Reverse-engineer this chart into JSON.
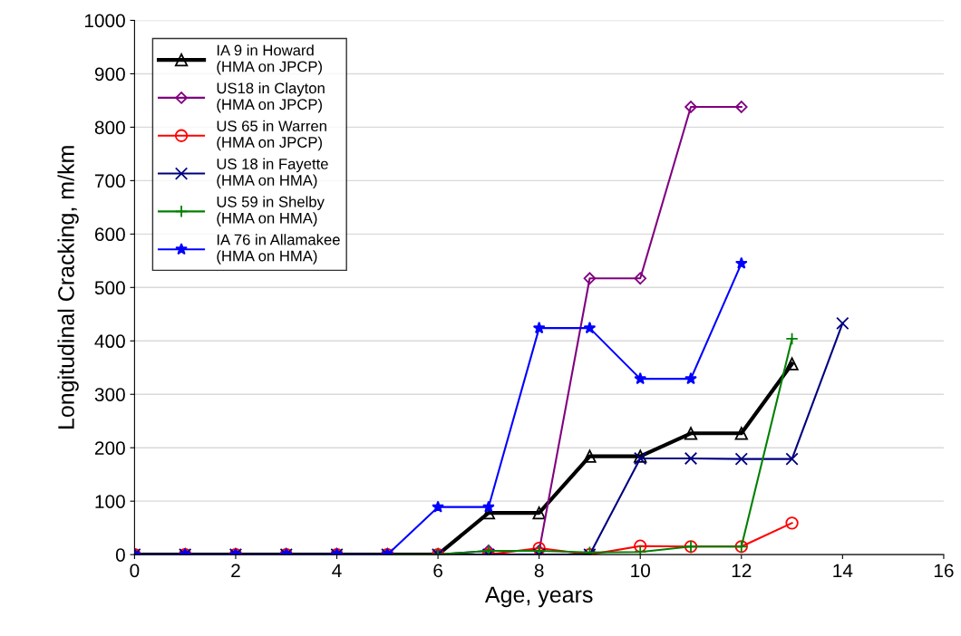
{
  "chart_data": {
    "type": "line",
    "xlabel": "Age, years",
    "ylabel": "Longitudinal Cracking, m/km",
    "xlim": [
      0,
      16
    ],
    "xticks": [
      0,
      2,
      4,
      6,
      8,
      10,
      12,
      14,
      16
    ],
    "ylim": [
      0,
      1000
    ],
    "yticks": [
      0,
      100,
      200,
      300,
      400,
      500,
      600,
      700,
      800,
      900,
      1000
    ],
    "grid": "y",
    "legend": "top left",
    "line_style": "solid",
    "x": [
      0,
      1,
      2,
      3,
      4,
      5,
      6,
      7,
      8,
      9,
      10,
      11,
      12,
      13,
      14
    ],
    "series": [
      {
        "name": "IA 9 in Howard\n(HMA on JPCP)",
        "color": "#000000",
        "marker": "triangle",
        "values": [
          0,
          0,
          0,
          0,
          0,
          0,
          0,
          78,
          78,
          184,
          184,
          227,
          227,
          357,
          null
        ]
      },
      {
        "name": "US18 in Clayton\n(HMA on JPCP)",
        "color": "#800080",
        "marker": "diamond",
        "values": [
          0,
          0,
          0,
          0,
          0,
          0,
          0,
          7,
          7,
          517,
          517,
          838,
          838,
          null,
          null
        ]
      },
      {
        "name": "US 65 in Warren\n(HMA on JPCP)",
        "color": "#ff0000",
        "marker": "circle",
        "values": [
          0,
          0,
          0,
          0,
          0,
          0,
          0,
          0,
          12,
          0,
          16,
          15,
          15,
          59,
          null
        ]
      },
      {
        "name": "US 18 in Fayette\n(HMA on HMA)",
        "color": "#000080",
        "marker": "cross",
        "values": [
          0,
          0,
          0,
          0,
          0,
          0,
          0,
          0,
          0,
          0,
          180,
          180,
          179,
          179,
          433
        ]
      },
      {
        "name": "US 59 in Shelby\n(HMA on HMA)",
        "color": "#008000",
        "marker": "plus",
        "values": [
          null,
          null,
          null,
          null,
          null,
          0,
          0,
          7,
          7,
          4,
          5,
          15,
          15,
          404,
          null
        ]
      },
      {
        "name": "IA 76 in Allamakee\n(HMA on HMA)",
        "color": "#0000ff",
        "marker": "star",
        "values": [
          0,
          0,
          0,
          0,
          0,
          0,
          89,
          89,
          424,
          424,
          329,
          329,
          545,
          null,
          null
        ]
      }
    ]
  }
}
